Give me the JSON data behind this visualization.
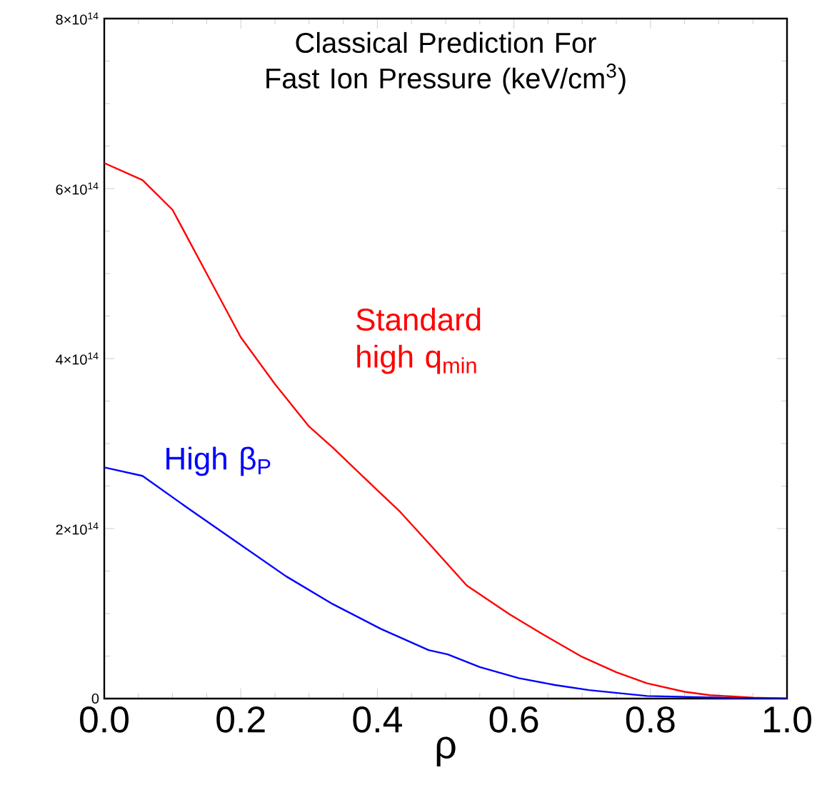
{
  "chart_data": {
    "type": "line",
    "title": "Classical Prediction For Fast Ion Pressure (keV/cm$^{3}$)",
    "xlabel": "ρ",
    "xlim": [
      0,
      1
    ],
    "ylim": [
      0,
      800000000000000.0
    ],
    "xticks": [
      {
        "value": 0,
        "label": "0.0"
      },
      0.2,
      0.4,
      0.6,
      0.8,
      {
        "value": 1,
        "label": "1.0"
      }
    ],
    "yticks": [
      {
        "value": 0,
        "label": "0"
      },
      {
        "value": 200000000000000.0,
        "label": "2×10$^{14}$"
      },
      {
        "value": 400000000000000.0,
        "label": "4×10$^{14}$"
      },
      {
        "value": 600000000000000.0,
        "label": "6×10$^{14}$"
      },
      {
        "value": 800000000000000.0,
        "label": "8×10$^{14}$"
      }
    ],
    "grid": false,
    "marker": "none",
    "line_style": "solid",
    "series": [
      {
        "name": "Standard high q$_{min}$",
        "color": "#ff0000",
        "x": [
          0,
          0.056,
          0.1,
          0.15,
          0.2,
          0.25,
          0.3,
          0.335,
          0.4,
          0.433,
          0.475,
          0.531,
          0.594,
          0.65,
          0.7,
          0.75,
          0.795,
          0.85,
          0.887,
          0.95,
          1.0
        ],
        "values": [
          630000000000000.0,
          610000000000000.0,
          575000000000000.0,
          500000000000000.0,
          425000000000000.0,
          370000000000000.0,
          320000000000000.0,
          295000000000000.0,
          245000000000000.0,
          220000000000000.0,
          183000000000000.0,
          133000000000000.0,
          99000000000000.0,
          72000000000000.0,
          49000000000000.0,
          31000000000000.0,
          18000000000000.0,
          8000000000000.0,
          4000000000000.0,
          1000000000000.0,
          0
        ]
      },
      {
        "name": "High β$_{P}$",
        "color": "#0000ff",
        "x": [
          0,
          0.056,
          0.126,
          0.196,
          0.266,
          0.335,
          0.405,
          0.475,
          0.503,
          0.55,
          0.607,
          0.66,
          0.71,
          0.795,
          0.9,
          1.0
        ],
        "values": [
          272000000000000.0,
          262000000000000.0,
          222000000000000.0,
          183000000000000.0,
          144000000000000.0,
          111000000000000.0,
          82000000000000.0,
          57000000000000.0,
          52000000000000.0,
          37000000000000.0,
          24000000000000.0,
          16000000000000.0,
          10000000000000.0,
          3000000000000.0,
          1000000000000.0,
          0
        ]
      }
    ]
  }
}
